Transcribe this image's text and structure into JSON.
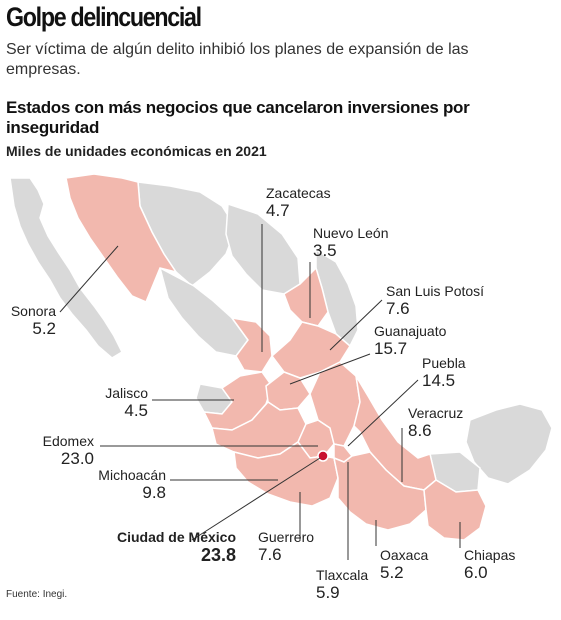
{
  "headline": "Golpe delincuencial",
  "deck": "Ser víctima de algún delito inhibió los planes de expansión de las empresas.",
  "subtitle": "Estados con más negocios que cancelaron inversiones por inseguridad",
  "unit": "Miles de unidades económicas en 2021",
  "source": "Fuente: Inegi.",
  "colors": {
    "highlight": "#f2b8ae",
    "other": "#d9d9d9",
    "border": "#ffffff",
    "leader": "#333333",
    "marker": "#c8102e"
  },
  "states": [
    {
      "name": "Zacatecas",
      "value": "4.7"
    },
    {
      "name": "Nuevo León",
      "value": "3.5"
    },
    {
      "name": "San Luis Potosí",
      "value": "7.6"
    },
    {
      "name": "Guanajuato",
      "value": "15.7"
    },
    {
      "name": "Puebla",
      "value": "14.5"
    },
    {
      "name": "Veracruz",
      "value": "8.6"
    },
    {
      "name": "Sonora",
      "value": "5.2"
    },
    {
      "name": "Jalisco",
      "value": "4.5"
    },
    {
      "name": "Edomex",
      "value": "23.0"
    },
    {
      "name": "Michoacán",
      "value": "9.8"
    },
    {
      "name": "Ciudad de México",
      "value": "23.8"
    },
    {
      "name": "Guerrero",
      "value": "7.6"
    },
    {
      "name": "Oaxaca",
      "value": "5.2"
    },
    {
      "name": "Chiapas",
      "value": "6.0"
    },
    {
      "name": "Tlaxcala",
      "value": "5.9"
    }
  ]
}
